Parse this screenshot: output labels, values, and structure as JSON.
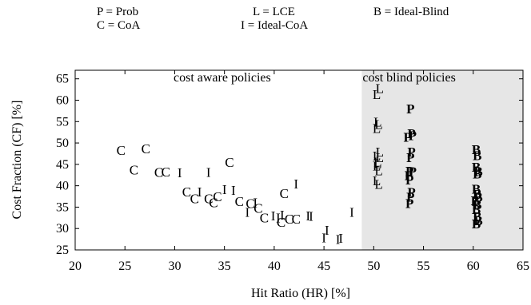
{
  "chart_data": {
    "type": "scatter",
    "title": "",
    "xlabel": "Hit Ratio (HR) [%]",
    "ylabel": "Cost Fraction (CF) [%]",
    "xlim": [
      20,
      65
    ],
    "ylim": [
      25,
      67
    ],
    "x_ticks": [
      20,
      25,
      30,
      35,
      40,
      45,
      50,
      55,
      60,
      65
    ],
    "y_ticks": [
      25,
      30,
      35,
      40,
      45,
      50,
      55,
      60,
      65
    ],
    "grid": false,
    "legend": [
      {
        "symbol": "P",
        "text": "P = Prob"
      },
      {
        "symbol": "C",
        "text": "C = CoA"
      },
      {
        "symbol": "L",
        "text": "L = LCE"
      },
      {
        "symbol": "I",
        "text": "I = Ideal-CoA"
      },
      {
        "symbol": "B",
        "text": "B = Ideal-Blind"
      }
    ],
    "regions": [
      {
        "label": "cost aware policies",
        "x_range": [
          20,
          48.8
        ],
        "fill": "#ffffff"
      },
      {
        "label": "cost blind policies",
        "x_range": [
          48.8,
          65
        ],
        "fill": "#e6e6e6"
      }
    ],
    "series": [
      {
        "symbol": "C",
        "points": [
          [
            24.6,
            48.3
          ],
          [
            27.1,
            48.7
          ],
          [
            25.9,
            43.8
          ],
          [
            28.4,
            43.2
          ],
          [
            29.1,
            43.3
          ],
          [
            35.5,
            45.5
          ],
          [
            31.2,
            38.6
          ],
          [
            32.0,
            37.0
          ],
          [
            33.4,
            37.0
          ],
          [
            33.9,
            36.1
          ],
          [
            34.3,
            37.5
          ],
          [
            36.5,
            36.4
          ],
          [
            37.6,
            35.9
          ],
          [
            38.4,
            34.8
          ],
          [
            39.0,
            32.6
          ],
          [
            40.7,
            31.5
          ],
          [
            41.0,
            38.3
          ],
          [
            41.5,
            32.3
          ],
          [
            42.2,
            32.3
          ]
        ]
      },
      {
        "symbol": "I",
        "points": [
          [
            30.5,
            43.1
          ],
          [
            33.4,
            43.2
          ],
          [
            32.5,
            38.6
          ],
          [
            35.0,
            39.2
          ],
          [
            35.9,
            39.0
          ],
          [
            37.3,
            33.9
          ],
          [
            38.1,
            36.1
          ],
          [
            39.9,
            33.0
          ],
          [
            40.4,
            32.6
          ],
          [
            40.8,
            33.2
          ],
          [
            42.2,
            40.5
          ],
          [
            43.4,
            33.0
          ],
          [
            43.7,
            32.9
          ],
          [
            45.0,
            27.9
          ],
          [
            45.3,
            29.7
          ],
          [
            46.4,
            27.5
          ],
          [
            46.7,
            27.8
          ],
          [
            47.8,
            33.9
          ]
        ]
      },
      {
        "symbol": "L",
        "points": [
          [
            50.3,
            61.4
          ],
          [
            50.6,
            62.8
          ],
          [
            50.4,
            55.0
          ],
          [
            50.3,
            53.5
          ],
          [
            50.5,
            54.4
          ],
          [
            50.3,
            47.0
          ],
          [
            50.4,
            45.6
          ],
          [
            50.6,
            46.7
          ],
          [
            50.3,
            44.7
          ],
          [
            50.5,
            43.6
          ],
          [
            50.3,
            41.2
          ],
          [
            50.5,
            40.4
          ],
          [
            50.4,
            45.3
          ],
          [
            50.6,
            48.0
          ]
        ]
      },
      {
        "symbol": "P",
        "points": [
          [
            53.7,
            58.0
          ],
          [
            53.8,
            52.3
          ],
          [
            53.4,
            51.4
          ],
          [
            53.9,
            51.8
          ],
          [
            53.8,
            48.0
          ],
          [
            53.7,
            46.7
          ],
          [
            53.6,
            43.5
          ],
          [
            53.5,
            42.5
          ],
          [
            53.9,
            43.4
          ],
          [
            53.6,
            41.4
          ],
          [
            53.8,
            38.5
          ],
          [
            53.7,
            37.4
          ],
          [
            53.6,
            35.9
          ]
        ]
      },
      {
        "symbol": "B",
        "points": [
          [
            60.3,
            48.5
          ],
          [
            60.4,
            47.1
          ],
          [
            60.3,
            44.4
          ],
          [
            60.5,
            43.4
          ],
          [
            60.4,
            42.8
          ],
          [
            60.3,
            39.3
          ],
          [
            60.4,
            38.1
          ],
          [
            60.5,
            37.4
          ],
          [
            60.2,
            36.6
          ],
          [
            60.4,
            35.6
          ],
          [
            60.3,
            34.5
          ],
          [
            60.4,
            32.8
          ],
          [
            60.5,
            31.9
          ],
          [
            60.3,
            31.2
          ]
        ]
      }
    ]
  }
}
